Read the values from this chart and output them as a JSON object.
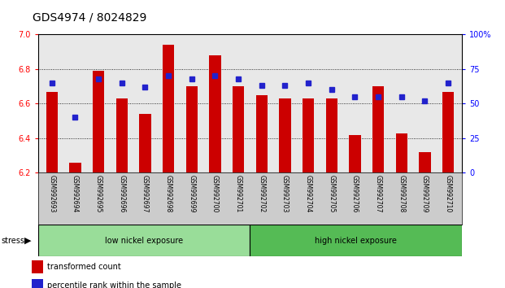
{
  "title": "GDS4974 / 8024829",
  "samples": [
    "GSM992693",
    "GSM992694",
    "GSM992695",
    "GSM992696",
    "GSM992697",
    "GSM992698",
    "GSM992699",
    "GSM992700",
    "GSM992701",
    "GSM992702",
    "GSM992703",
    "GSM992704",
    "GSM992705",
    "GSM992706",
    "GSM992707",
    "GSM992708",
    "GSM992709",
    "GSM992710"
  ],
  "red_values": [
    6.67,
    6.26,
    6.79,
    6.63,
    6.54,
    6.94,
    6.7,
    6.88,
    6.7,
    6.65,
    6.63,
    6.63,
    6.63,
    6.42,
    6.7,
    6.43,
    6.32,
    6.67
  ],
  "blue_values": [
    65,
    40,
    68,
    65,
    62,
    70,
    68,
    70,
    68,
    63,
    63,
    65,
    60,
    55,
    55,
    55,
    52,
    65
  ],
  "ymin": 6.2,
  "ymax": 7.0,
  "y2min": 0,
  "y2max": 100,
  "yticks": [
    6.2,
    6.4,
    6.6,
    6.8,
    7.0
  ],
  "y2ticks": [
    0,
    25,
    50,
    75,
    100
  ],
  "group_low": {
    "label": "low nickel exposure",
    "start": 0,
    "end": 9
  },
  "group_high": {
    "label": "high nickel exposure",
    "start": 9,
    "end": 18
  },
  "stress_label": "stress",
  "legend_red": "transformed count",
  "legend_blue": "percentile rank within the sample",
  "bar_color": "#cc0000",
  "dot_color": "#2222cc",
  "bar_width": 0.5,
  "plot_bg": "#e8e8e8",
  "xlabels_bg": "#cccccc",
  "group_low_color": "#99dd99",
  "group_high_color": "#55bb55",
  "title_fontsize": 10,
  "tick_fontsize": 7,
  "label_fontsize": 7
}
